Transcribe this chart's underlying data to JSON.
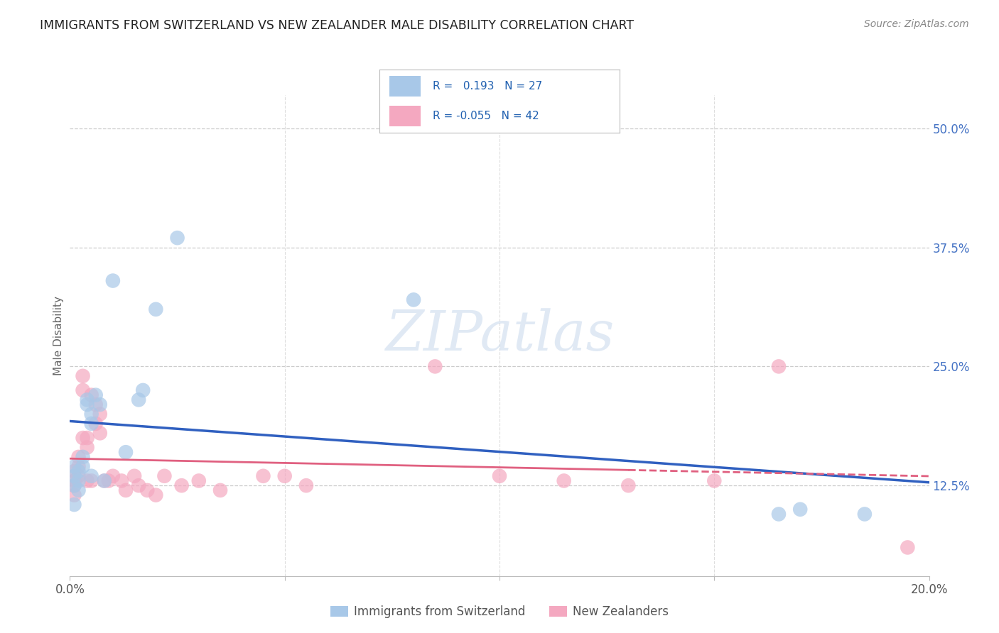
{
  "title": "IMMIGRANTS FROM SWITZERLAND VS NEW ZEALANDER MALE DISABILITY CORRELATION CHART",
  "source": "Source: ZipAtlas.com",
  "ylabel": "Male Disability",
  "ytick_labels": [
    "12.5%",
    "25.0%",
    "37.5%",
    "50.0%"
  ],
  "ytick_values": [
    0.125,
    0.25,
    0.375,
    0.5
  ],
  "legend_label1": "Immigrants from Switzerland",
  "legend_label2": "New Zealanders",
  "r1": 0.193,
  "n1": 27,
  "r2": -0.055,
  "n2": 42,
  "color_blue": "#a8c8e8",
  "color_pink": "#f4a8c0",
  "color_blue_line": "#3060c0",
  "color_pink_line": "#e06080",
  "watermark": "ZIPatlas",
  "blue_x": [
    0.001,
    0.001,
    0.001,
    0.001,
    0.002,
    0.002,
    0.002,
    0.003,
    0.003,
    0.004,
    0.004,
    0.005,
    0.005,
    0.005,
    0.006,
    0.007,
    0.008,
    0.01,
    0.013,
    0.016,
    0.017,
    0.02,
    0.025,
    0.08,
    0.165,
    0.17,
    0.185
  ],
  "blue_y": [
    0.135,
    0.145,
    0.125,
    0.105,
    0.14,
    0.13,
    0.12,
    0.155,
    0.145,
    0.215,
    0.21,
    0.2,
    0.19,
    0.135,
    0.22,
    0.21,
    0.13,
    0.34,
    0.16,
    0.215,
    0.225,
    0.31,
    0.385,
    0.32,
    0.095,
    0.1,
    0.095
  ],
  "pink_x": [
    0.001,
    0.001,
    0.001,
    0.001,
    0.002,
    0.002,
    0.002,
    0.003,
    0.003,
    0.003,
    0.004,
    0.004,
    0.004,
    0.005,
    0.005,
    0.006,
    0.006,
    0.007,
    0.007,
    0.008,
    0.009,
    0.01,
    0.012,
    0.013,
    0.015,
    0.016,
    0.018,
    0.02,
    0.022,
    0.026,
    0.03,
    0.035,
    0.045,
    0.05,
    0.055,
    0.085,
    0.1,
    0.115,
    0.13,
    0.15,
    0.165,
    0.195
  ],
  "pink_y": [
    0.13,
    0.14,
    0.125,
    0.115,
    0.155,
    0.145,
    0.135,
    0.225,
    0.24,
    0.175,
    0.175,
    0.165,
    0.13,
    0.22,
    0.13,
    0.19,
    0.21,
    0.2,
    0.18,
    0.13,
    0.13,
    0.135,
    0.13,
    0.12,
    0.135,
    0.125,
    0.12,
    0.115,
    0.135,
    0.125,
    0.13,
    0.12,
    0.135,
    0.135,
    0.125,
    0.25,
    0.135,
    0.13,
    0.125,
    0.13,
    0.25,
    0.06
  ]
}
